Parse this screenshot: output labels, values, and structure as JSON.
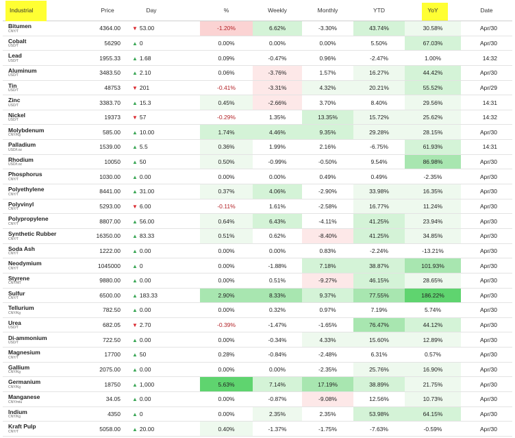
{
  "header": {
    "name": "Industrial",
    "price": "Price",
    "day": "Day",
    "pct": "%",
    "weekly": "Weekly",
    "monthly": "Monthly",
    "ytd": "YTD",
    "yoy": "YoY",
    "date": "Date"
  },
  "colors": {
    "up_arrow": "#3aa655",
    "down_arrow": "#d9262c",
    "highlight": "#ffff33",
    "neg_light": "#fde8e8",
    "neg_med": "#fbd3d3",
    "pos_light": "#eef9ee",
    "pos_med": "#d4f3d7",
    "pos_strong": "#a8e6b0",
    "pos_max": "#5fd46f"
  },
  "rows": [
    {
      "name": "Bitumen",
      "unit": "CNY/T",
      "price": "4364.00",
      "dir": "down",
      "day": "53.00",
      "pct": "-1.20%",
      "weekly": "6.62%",
      "monthly": "-3.30%",
      "ytd": "43.74%",
      "yoy": "30.58%",
      "date": "Apr/30"
    },
    {
      "name": "Cobalt",
      "unit": "USD/T",
      "price": "56290",
      "dir": "up",
      "day": "0",
      "pct": "0.00%",
      "weekly": "0.00%",
      "monthly": "0.00%",
      "ytd": "5.50%",
      "yoy": "67.03%",
      "date": "Apr/30"
    },
    {
      "name": "Lead",
      "unit": "USD/T",
      "price": "1955.33",
      "dir": "up",
      "day": "1.68",
      "pct": "0.09%",
      "weekly": "-0.47%",
      "monthly": "0.96%",
      "ytd": "-2.47%",
      "yoy": "1.00%",
      "date": "14:32"
    },
    {
      "name": "Aluminum",
      "unit": "USD/T",
      "price": "3483.50",
      "dir": "up",
      "day": "2.10",
      "pct": "0.06%",
      "weekly": "-3.76%",
      "monthly": "1.57%",
      "ytd": "16.27%",
      "yoy": "44.42%",
      "date": "Apr/30"
    },
    {
      "name": "Tin",
      "unit": "USD/T",
      "price": "48753",
      "dir": "down",
      "day": "201",
      "pct": "-0.41%",
      "weekly": "-3.31%",
      "monthly": "4.32%",
      "ytd": "20.21%",
      "yoy": "55.52%",
      "date": "Apr/29"
    },
    {
      "name": "Zinc",
      "unit": "USD/T",
      "price": "3383.70",
      "dir": "up",
      "day": "15.3",
      "pct": "0.45%",
      "weekly": "-2.66%",
      "monthly": "3.70%",
      "ytd": "8.40%",
      "yoy": "29.56%",
      "date": "14:31"
    },
    {
      "name": "Nickel",
      "unit": "USD/T",
      "price": "19373",
      "dir": "down",
      "day": "57",
      "pct": "-0.29%",
      "weekly": "1.35%",
      "monthly": "13.35%",
      "ytd": "15.72%",
      "yoy": "25.62%",
      "date": "14:32"
    },
    {
      "name": "Molybdenum",
      "unit": "CNY/Kg",
      "price": "585.00",
      "dir": "up",
      "day": "10.00",
      "pct": "1.74%",
      "weekly": "4.46%",
      "monthly": "9.35%",
      "ytd": "29.28%",
      "yoy": "28.15%",
      "date": "Apr/30"
    },
    {
      "name": "Palladium",
      "unit": "USD/t.oz",
      "price": "1539.00",
      "dir": "up",
      "day": "5.5",
      "pct": "0.36%",
      "weekly": "1.99%",
      "monthly": "2.16%",
      "ytd": "-6.75%",
      "yoy": "61.93%",
      "date": "14:31"
    },
    {
      "name": "Rhodium",
      "unit": "USD/t.oz",
      "price": "10050",
      "dir": "up",
      "day": "50",
      "pct": "0.50%",
      "weekly": "-0.99%",
      "monthly": "-0.50%",
      "ytd": "9.54%",
      "yoy": "86.98%",
      "date": "Apr/30"
    },
    {
      "name": "Phosphorus",
      "unit": "CNY/T",
      "price": "1030.00",
      "dir": "up",
      "day": "0.00",
      "pct": "0.00%",
      "weekly": "0.00%",
      "monthly": "0.49%",
      "ytd": "0.49%",
      "yoy": "-2.35%",
      "date": "Apr/30"
    },
    {
      "name": "Polyethylene",
      "unit": "CNY/T",
      "price": "8441.00",
      "dir": "up",
      "day": "31.00",
      "pct": "0.37%",
      "weekly": "4.06%",
      "monthly": "-2.90%",
      "ytd": "33.98%",
      "yoy": "16.35%",
      "date": "Apr/30"
    },
    {
      "name": "Polyvinyl",
      "unit": "CNY/T",
      "price": "5293.00",
      "dir": "down",
      "day": "6.00",
      "pct": "-0.11%",
      "weekly": "1.61%",
      "monthly": "-2.58%",
      "ytd": "16.77%",
      "yoy": "11.24%",
      "date": "Apr/30"
    },
    {
      "name": "Polypropylene",
      "unit": "CNY/T",
      "price": "8807.00",
      "dir": "up",
      "day": "56.00",
      "pct": "0.64%",
      "weekly": "6.43%",
      "monthly": "-4.11%",
      "ytd": "41.25%",
      "yoy": "23.94%",
      "date": "Apr/30"
    },
    {
      "name": "Synthetic Rubber",
      "unit": "CNY/T",
      "price": "16350.00",
      "dir": "up",
      "day": "83.33",
      "pct": "0.51%",
      "weekly": "0.62%",
      "monthly": "-8.40%",
      "ytd": "41.25%",
      "yoy": "34.85%",
      "date": "Apr/30"
    },
    {
      "name": "Soda Ash",
      "unit": "CNY/T",
      "price": "1222.00",
      "dir": "up",
      "day": "0.00",
      "pct": "0.00%",
      "weekly": "0.00%",
      "monthly": "0.83%",
      "ytd": "-2.24%",
      "yoy": "-13.21%",
      "date": "Apr/30"
    },
    {
      "name": "Neodymium",
      "unit": "CNY/T",
      "price": "1045000",
      "dir": "up",
      "day": "0",
      "pct": "0.00%",
      "weekly": "-1.88%",
      "monthly": "7.18%",
      "ytd": "38.87%",
      "yoy": "101.93%",
      "date": "Apr/30"
    },
    {
      "name": "Styrene",
      "unit": "CNY/MT",
      "price": "9880.00",
      "dir": "up",
      "day": "0.00",
      "pct": "0.00%",
      "weekly": "0.51%",
      "monthly": "-9.27%",
      "ytd": "46.15%",
      "yoy": "28.65%",
      "date": "Apr/30"
    },
    {
      "name": "Sulfur",
      "unit": "CNY/T",
      "price": "6500.00",
      "dir": "up",
      "day": "183.33",
      "pct": "2.90%",
      "weekly": "8.33%",
      "monthly": "9.37%",
      "ytd": "77.55%",
      "yoy": "186.22%",
      "date": "Apr/30"
    },
    {
      "name": "Tellurium",
      "unit": "CNY/Kg",
      "price": "782.50",
      "dir": "up",
      "day": "0.00",
      "pct": "0.00%",
      "weekly": "0.32%",
      "monthly": "0.97%",
      "ytd": "7.19%",
      "yoy": "5.74%",
      "date": "Apr/30"
    },
    {
      "name": "Urea",
      "unit": "USD/T",
      "price": "682.05",
      "dir": "down",
      "day": "2.70",
      "pct": "-0.39%",
      "weekly": "-1.47%",
      "monthly": "-1.65%",
      "ytd": "76.47%",
      "yoy": "44.12%",
      "date": "Apr/30"
    },
    {
      "name": "Di-ammonium",
      "unit": "USD/T",
      "price": "722.50",
      "dir": "up",
      "day": "0.00",
      "pct": "0.00%",
      "weekly": "-0.34%",
      "monthly": "4.33%",
      "ytd": "15.60%",
      "yoy": "12.89%",
      "date": "Apr/30"
    },
    {
      "name": "Magnesium",
      "unit": "CNY/T",
      "price": "17700",
      "dir": "up",
      "day": "50",
      "pct": "0.28%",
      "weekly": "-0.84%",
      "monthly": "-2.48%",
      "ytd": "6.31%",
      "yoy": "0.57%",
      "date": "Apr/30"
    },
    {
      "name": "Gallium",
      "unit": "CNY/Kg",
      "price": "2075.00",
      "dir": "up",
      "day": "0.00",
      "pct": "0.00%",
      "weekly": "0.00%",
      "monthly": "-2.35%",
      "ytd": "25.76%",
      "yoy": "16.90%",
      "date": "Apr/30"
    },
    {
      "name": "Germanium",
      "unit": "CNY/Kg",
      "price": "18750",
      "dir": "up",
      "day": "1,000",
      "pct": "5.63%",
      "weekly": "7.14%",
      "monthly": "17.19%",
      "ytd": "38.89%",
      "yoy": "21.75%",
      "date": "Apr/30"
    },
    {
      "name": "Manganese",
      "unit": "CNY/mtu",
      "price": "34.05",
      "dir": "up",
      "day": "0.00",
      "pct": "0.00%",
      "weekly": "-0.87%",
      "monthly": "-9.08%",
      "ytd": "12.56%",
      "yoy": "10.73%",
      "date": "Apr/30"
    },
    {
      "name": "Indium",
      "unit": "CNY/Kg",
      "price": "4350",
      "dir": "up",
      "day": "0",
      "pct": "0.00%",
      "weekly": "2.35%",
      "monthly": "2.35%",
      "ytd": "53.98%",
      "yoy": "64.15%",
      "date": "Apr/30"
    },
    {
      "name": "Kraft Pulp",
      "unit": "CNY/T",
      "price": "5058.00",
      "dir": "up",
      "day": "20.00",
      "pct": "0.40%",
      "weekly": "-1.37%",
      "monthly": "-1.75%",
      "ytd": "-7.63%",
      "yoy": "-0.59%",
      "date": "Apr/30"
    }
  ]
}
